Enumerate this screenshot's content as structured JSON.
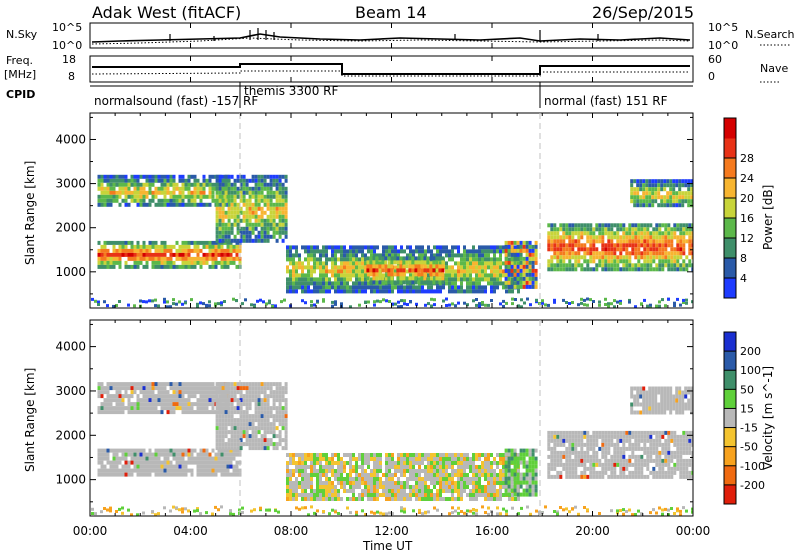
{
  "header": {
    "title": "Adak West (fitACF)",
    "beam": "Beam 14",
    "date": "26/Sep/2015"
  },
  "noise_panel": {
    "left_label": "N.Sky",
    "right_label": "N.Search",
    "top_tick": "10^5",
    "bottom_tick": "10^0",
    "right_top_tick": "10^5",
    "right_bottom_tick": "10^0"
  },
  "freq_panel": {
    "left_label": "Freq.",
    "unit_label": "[MHz]",
    "left_ticks": [
      "18",
      "8"
    ],
    "right_label": "Nave",
    "right_ticks": [
      "60",
      "0"
    ],
    "cpid_label": "CPID"
  },
  "cpid_segments": [
    {
      "label": "normalsound (fast) -157 RF",
      "start_hour": 0
    },
    {
      "label": "themis 3300 RF",
      "start_hour": 6
    },
    {
      "label": "normal (fast) 151 RF",
      "start_hour": 18
    }
  ],
  "chart_data": [
    {
      "type": "heatmap",
      "name": "power",
      "ylabel": "Slant Range [km]",
      "xlabel": "Time UT",
      "x_ticks": [
        "00:00",
        "04:00",
        "08:00",
        "12:00",
        "16:00",
        "20:00",
        "00:00"
      ],
      "y_ticks": [
        "1000",
        "2000",
        "3000",
        "4000"
      ],
      "xlim_hours": [
        0,
        24
      ],
      "ylim_km": [
        180,
        4600
      ],
      "colorbar_label": "Power [dB]",
      "colorbar_ticks": [
        "4",
        "8",
        "12",
        "16",
        "20",
        "24",
        "28"
      ],
      "colorbar_colors": [
        "#1e3cff",
        "#2a5aa8",
        "#3f8f6a",
        "#5cb84a",
        "#c8d43a",
        "#f7b531",
        "#f57a1e",
        "#e83216",
        "#d40000"
      ],
      "regions": [
        {
          "t_start": 0.3,
          "t_end": 6.0,
          "r_start": 1150,
          "r_end": 1700,
          "level": "high"
        },
        {
          "t_start": 0.3,
          "t_end": 5.5,
          "r_start": 2500,
          "r_end": 3200,
          "level": "mid"
        },
        {
          "t_start": 5.0,
          "t_end": 7.8,
          "r_start": 1700,
          "r_end": 3200,
          "level": "mid"
        },
        {
          "t_start": 7.8,
          "t_end": 17.0,
          "r_start": 600,
          "r_end": 1600,
          "level": "mid"
        },
        {
          "t_start": 11.0,
          "t_end": 14.0,
          "r_start": 800,
          "r_end": 1350,
          "level": "high"
        },
        {
          "t_start": 16.5,
          "t_end": 17.8,
          "r_start": 700,
          "r_end": 1700,
          "level": "mixed"
        },
        {
          "t_start": 18.2,
          "t_end": 24.0,
          "r_start": 1100,
          "r_end": 2100,
          "level": "high"
        },
        {
          "t_start": 21.5,
          "t_end": 24.0,
          "r_start": 2500,
          "r_end": 3100,
          "level": "mid"
        }
      ]
    },
    {
      "type": "heatmap",
      "name": "velocity",
      "ylabel": "Slant Range [km]",
      "xlabel": "Time UT",
      "x_ticks": [
        "00:00",
        "04:00",
        "08:00",
        "12:00",
        "16:00",
        "20:00",
        "00:00"
      ],
      "y_ticks": [
        "1000",
        "2000",
        "3000",
        "4000"
      ],
      "xlim_hours": [
        0,
        24
      ],
      "ylim_km": [
        180,
        4600
      ],
      "colorbar_label": "Velocity [m s^-1]",
      "colorbar_ticks": [
        "200",
        "100",
        "50",
        "15",
        "-15",
        "-50",
        "-100",
        "-200"
      ],
      "colorbar_colors": [
        "#1a2fd0",
        "#2a5aa8",
        "#3f8f6a",
        "#5fd03a",
        "#b8b8b8",
        "#f4c430",
        "#f7a21e",
        "#f06a10",
        "#e01e0a"
      ],
      "regions": [
        {
          "t_start": 0.3,
          "t_end": 6.0,
          "r_start": 1150,
          "r_end": 1700,
          "level": "ground"
        },
        {
          "t_start": 0.3,
          "t_end": 5.5,
          "r_start": 2500,
          "r_end": 3200,
          "level": "ground"
        },
        {
          "t_start": 5.0,
          "t_end": 7.8,
          "r_start": 1700,
          "r_end": 3200,
          "level": "ground"
        },
        {
          "t_start": 7.8,
          "t_end": 17.0,
          "r_start": 600,
          "r_end": 1600,
          "level": "mixed"
        },
        {
          "t_start": 16.5,
          "t_end": 17.8,
          "r_start": 700,
          "r_end": 1700,
          "level": "positive"
        },
        {
          "t_start": 18.2,
          "t_end": 24.0,
          "r_start": 1100,
          "r_end": 2100,
          "level": "ground"
        },
        {
          "t_start": 21.5,
          "t_end": 24.0,
          "r_start": 2500,
          "r_end": 3100,
          "level": "ground"
        }
      ]
    }
  ]
}
